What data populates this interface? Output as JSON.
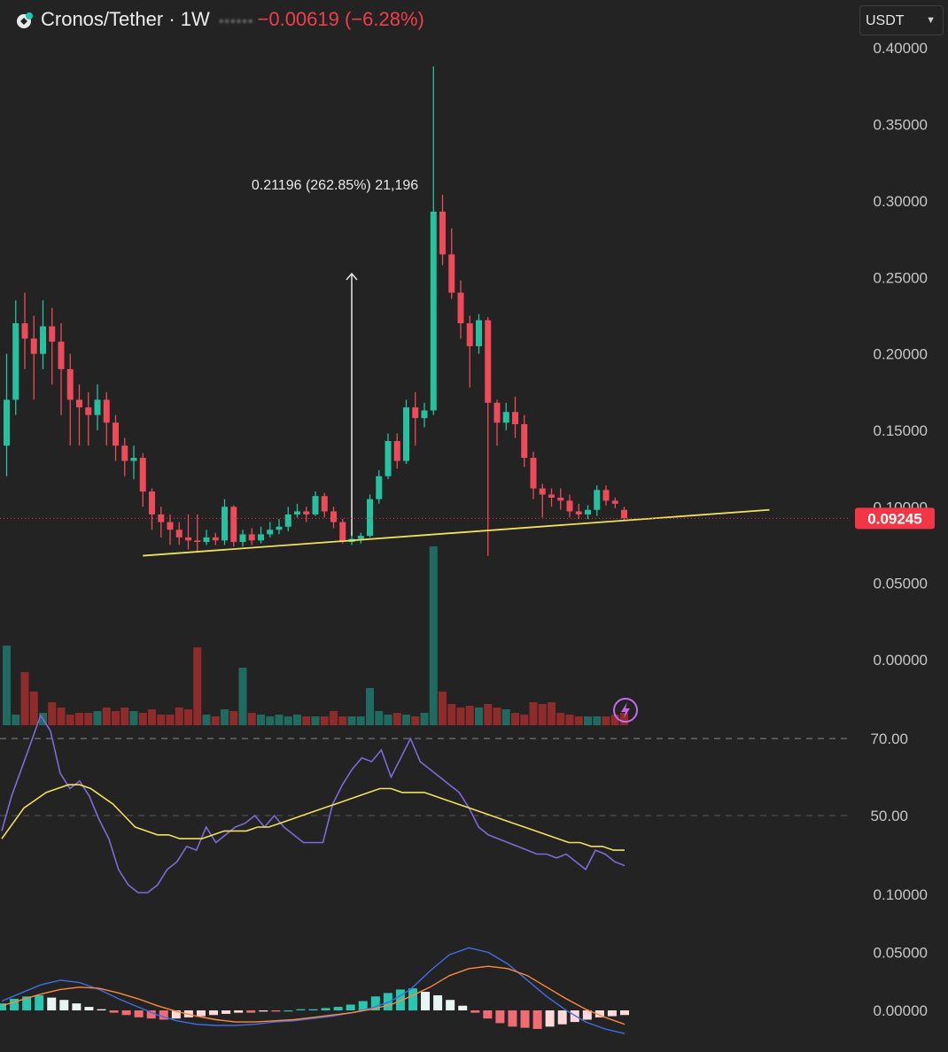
{
  "header": {
    "symbol": "Cronos/Tether",
    "separator": "·",
    "interval": "1W",
    "change": "−0.00619 (−6.28%)",
    "quote_selector": "USDT",
    "chevron_icon": "chevron-down-icon",
    "logo_icon": "cronos-logo-icon"
  },
  "colors": {
    "background": "#232323",
    "up": "#26a69a",
    "down": "#ef5350",
    "trendline": "#f0e15b",
    "price_label": "#f23645",
    "rsi_line": "#7e6ad6",
    "rsi_ma": "#f0e15b",
    "macd_line": "#3f6fe0",
    "signal_line": "#ff8a3d"
  },
  "price_axis": {
    "ticks": [
      "0.40000",
      "0.35000",
      "0.30000",
      "0.25000",
      "0.20000",
      "0.15000",
      "0.10000",
      "0.05000",
      "0.00000"
    ],
    "last_price_label": "0.09245"
  },
  "measure_annotation": "0.21196 (262.85%) 21,196",
  "lightning_icon": "lightning-icon",
  "rsi_axis": {
    "ticks": [
      "70.00",
      "50.00"
    ]
  },
  "macd_axis": {
    "ticks": [
      "0.10000",
      "0.05000",
      "0.00000"
    ]
  },
  "chart_data": {
    "type": "candlestick",
    "title": "Cronos/Tether · 1W",
    "ylim": [
      0,
      0.4
    ],
    "last_price": 0.09245,
    "candles": [
      [
        0.14,
        0.17,
        0.12,
        0.2
      ],
      [
        0.17,
        0.22,
        0.16,
        0.235
      ],
      [
        0.22,
        0.21,
        0.19,
        0.24
      ],
      [
        0.21,
        0.2,
        0.17,
        0.225
      ],
      [
        0.2,
        0.218,
        0.19,
        0.235
      ],
      [
        0.218,
        0.208,
        0.18,
        0.23
      ],
      [
        0.208,
        0.19,
        0.16,
        0.22
      ],
      [
        0.19,
        0.17,
        0.14,
        0.2
      ],
      [
        0.17,
        0.165,
        0.14,
        0.18
      ],
      [
        0.165,
        0.16,
        0.14,
        0.175
      ],
      [
        0.16,
        0.17,
        0.15,
        0.18
      ],
      [
        0.17,
        0.155,
        0.14,
        0.175
      ],
      [
        0.155,
        0.14,
        0.13,
        0.16
      ],
      [
        0.14,
        0.13,
        0.12,
        0.145
      ],
      [
        0.13,
        0.132,
        0.118,
        0.14
      ],
      [
        0.132,
        0.11,
        0.1,
        0.135
      ],
      [
        0.11,
        0.095,
        0.085,
        0.112
      ],
      [
        0.095,
        0.09,
        0.08,
        0.1
      ],
      [
        0.09,
        0.085,
        0.075,
        0.095
      ],
      [
        0.085,
        0.08,
        0.075,
        0.09
      ],
      [
        0.08,
        0.078,
        0.072,
        0.095
      ],
      [
        0.078,
        0.077,
        0.07,
        0.095
      ],
      [
        0.077,
        0.08,
        0.075,
        0.085
      ],
      [
        0.08,
        0.078,
        0.075,
        0.083
      ],
      [
        0.078,
        0.1,
        0.075,
        0.105
      ],
      [
        0.1,
        0.077,
        0.074,
        0.101
      ],
      [
        0.077,
        0.082,
        0.074,
        0.085
      ],
      [
        0.082,
        0.078,
        0.075,
        0.086
      ],
      [
        0.078,
        0.082,
        0.076,
        0.087
      ],
      [
        0.082,
        0.085,
        0.08,
        0.09
      ],
      [
        0.085,
        0.087,
        0.082,
        0.092
      ],
      [
        0.087,
        0.095,
        0.084,
        0.1
      ],
      [
        0.095,
        0.097,
        0.093,
        0.102
      ],
      [
        0.097,
        0.095,
        0.09,
        0.1
      ],
      [
        0.095,
        0.107,
        0.094,
        0.11
      ],
      [
        0.107,
        0.097,
        0.093,
        0.109
      ],
      [
        0.097,
        0.09,
        0.086,
        0.1
      ],
      [
        0.09,
        0.077,
        0.076,
        0.092
      ],
      [
        0.077,
        0.079,
        0.075,
        0.084
      ],
      [
        0.079,
        0.081,
        0.076,
        0.083
      ],
      [
        0.081,
        0.105,
        0.08,
        0.108
      ],
      [
        0.105,
        0.12,
        0.102,
        0.124
      ],
      [
        0.12,
        0.143,
        0.118,
        0.148
      ],
      [
        0.143,
        0.13,
        0.125,
        0.148
      ],
      [
        0.13,
        0.165,
        0.128,
        0.17
      ],
      [
        0.165,
        0.158,
        0.14,
        0.175
      ],
      [
        0.158,
        0.163,
        0.152,
        0.168
      ],
      [
        0.163,
        0.293,
        0.16,
        0.388
      ],
      [
        0.293,
        0.265,
        0.258,
        0.304
      ],
      [
        0.265,
        0.24,
        0.236,
        0.282
      ],
      [
        0.24,
        0.22,
        0.21,
        0.248
      ],
      [
        0.22,
        0.205,
        0.178,
        0.225
      ],
      [
        0.205,
        0.222,
        0.2,
        0.226
      ],
      [
        0.222,
        0.168,
        0.068,
        0.224
      ],
      [
        0.168,
        0.155,
        0.14,
        0.17
      ],
      [
        0.155,
        0.162,
        0.15,
        0.168
      ],
      [
        0.162,
        0.154,
        0.145,
        0.172
      ],
      [
        0.154,
        0.132,
        0.126,
        0.16
      ],
      [
        0.132,
        0.112,
        0.105,
        0.136
      ],
      [
        0.112,
        0.108,
        0.093,
        0.115
      ],
      [
        0.108,
        0.106,
        0.1,
        0.112
      ],
      [
        0.106,
        0.104,
        0.098,
        0.112
      ],
      [
        0.104,
        0.097,
        0.093,
        0.108
      ],
      [
        0.097,
        0.095,
        0.092,
        0.102
      ],
      [
        0.095,
        0.098,
        0.092,
        0.101
      ],
      [
        0.098,
        0.111,
        0.094,
        0.114
      ],
      [
        0.111,
        0.104,
        0.101,
        0.114
      ],
      [
        0.104,
        0.102,
        0.099,
        0.106
      ],
      [
        0.098,
        0.09245,
        0.091,
        0.1
      ]
    ],
    "volume": [
      90,
      12,
      60,
      38,
      14,
      26,
      20,
      12,
      14,
      14,
      16,
      20,
      16,
      20,
      16,
      14,
      18,
      12,
      12,
      20,
      18,
      88,
      12,
      10,
      18,
      16,
      65,
      14,
      12,
      10,
      12,
      10,
      12,
      10,
      10,
      10,
      16,
      10,
      10,
      10,
      42,
      16,
      12,
      14,
      12,
      10,
      14,
      202,
      38,
      24,
      20,
      22,
      20,
      24,
      20,
      18,
      14,
      12,
      26,
      24,
      26,
      14,
      12,
      10,
      10,
      10,
      10,
      12,
      14
    ],
    "volume_colors": "match_candles",
    "trendline": {
      "from": {
        "index": 15,
        "price": 0.068
      },
      "to": {
        "index": 84,
        "price": 0.098
      }
    },
    "measure": {
      "from_index": 38,
      "price_from": 0.081,
      "price_to": 0.293
    },
    "rsi": {
      "levels": [
        70,
        50
      ],
      "rsi_values": [
        46,
        55,
        62,
        69,
        76,
        72,
        61,
        57,
        59,
        55,
        49,
        44,
        36,
        32,
        30,
        30,
        32,
        36,
        38,
        42,
        41,
        47,
        43,
        45,
        47,
        48,
        50,
        47,
        50,
        47,
        45,
        43,
        43,
        43,
        53,
        58,
        62,
        65,
        64,
        67,
        60,
        65,
        70,
        64,
        62,
        60,
        58,
        56,
        52,
        47,
        45,
        44,
        43,
        42,
        41,
        40,
        40,
        39,
        40,
        38,
        36,
        41,
        40,
        38,
        37
      ],
      "ma_values": [
        44,
        48,
        52,
        54,
        56,
        57,
        58,
        58,
        57,
        55,
        53,
        50,
        47,
        46,
        45,
        45,
        44,
        44,
        44,
        45,
        46,
        46,
        46,
        47,
        47,
        48,
        49,
        50,
        51,
        52,
        53,
        54,
        55,
        56,
        57,
        57,
        56,
        56,
        56,
        55,
        54,
        53,
        52,
        51,
        50,
        49,
        48,
        47,
        46,
        45,
        44,
        43,
        43,
        42,
        42,
        41,
        41
      ]
    },
    "macd": {
      "ylim": [
        -0.02,
        0.12
      ],
      "histogram": [
        0.006,
        0.01,
        0.012,
        0.013,
        0.011,
        0.009,
        0.006,
        0.003,
        0.001,
        -0.002,
        -0.004,
        -0.006,
        -0.007,
        -0.008,
        -0.007,
        -0.006,
        -0.005,
        -0.004,
        -0.003,
        -0.002,
        -0.002,
        -0.001,
        -0.001,
        0,
        0.001,
        0.001,
        0.002,
        0.003,
        0.005,
        0.008,
        0.012,
        0.015,
        0.018,
        0.019,
        0.016,
        0.013,
        0.009,
        0.004,
        -0.002,
        -0.007,
        -0.011,
        -0.014,
        -0.015,
        -0.016,
        -0.014,
        -0.012,
        -0.01,
        -0.008,
        -0.006,
        -0.005,
        -0.004
      ],
      "macd_line": [
        0.008,
        0.015,
        0.022,
        0.026,
        0.024,
        0.018,
        0.01,
        0.003,
        -0.004,
        -0.009,
        -0.012,
        -0.013,
        -0.013,
        -0.012,
        -0.01,
        -0.009,
        -0.007,
        -0.005,
        -0.002,
        0.002,
        0.008,
        0.018,
        0.034,
        0.048,
        0.054,
        0.05,
        0.04,
        0.026,
        0.012,
        0.0,
        -0.01,
        -0.016,
        -0.02
      ],
      "signal_line": [
        0.004,
        0.009,
        0.014,
        0.018,
        0.02,
        0.019,
        0.015,
        0.01,
        0.004,
        -0.001,
        -0.005,
        -0.008,
        -0.01,
        -0.01,
        -0.009,
        -0.008,
        -0.006,
        -0.004,
        -0.002,
        0.001,
        0.005,
        0.012,
        0.02,
        0.03,
        0.036,
        0.038,
        0.036,
        0.03,
        0.02,
        0.01,
        0.001,
        -0.006,
        -0.012
      ]
    }
  }
}
